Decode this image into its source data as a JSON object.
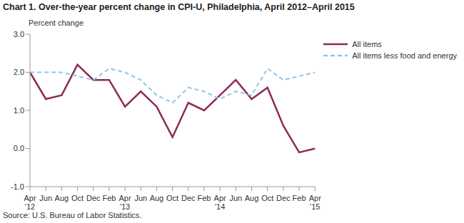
{
  "chart_data": {
    "type": "line",
    "title": "Chart 1. Over-the-year percent change in CPI-U, Philadelphia, April 2012–April 2015",
    "y_label": "Percent change",
    "source": "Source: U.S. Bureau of Labor Statistics.",
    "categories": [
      "Apr '12",
      "Jun",
      "Aug",
      "Oct",
      "Dec",
      "Feb",
      "Apr '13",
      "Jun",
      "Aug",
      "Oct",
      "Dec",
      "Feb",
      "Apr '14",
      "Jun",
      "Aug",
      "Oct",
      "Dec",
      "Feb",
      "Apr '15"
    ],
    "series": [
      {
        "name": "All items",
        "color": "#8e2a5b",
        "line_style": "solid",
        "values": [
          2.0,
          1.3,
          1.4,
          2.2,
          1.8,
          1.8,
          1.1,
          1.5,
          1.1,
          0.3,
          1.2,
          1.0,
          1.4,
          1.8,
          1.3,
          1.6,
          0.6,
          -0.1,
          0.0
        ]
      },
      {
        "name": "All items less food and energy",
        "color": "#92c5ec",
        "line_style": "dashed",
        "values": [
          2.0,
          2.0,
          2.0,
          1.9,
          1.8,
          2.1,
          2.0,
          1.8,
          1.4,
          1.2,
          1.6,
          1.5,
          1.3,
          1.5,
          1.4,
          2.1,
          1.8,
          1.9,
          2.0
        ]
      }
    ],
    "ylim": [
      -1,
      3
    ],
    "yticks": [
      {
        "value": -1,
        "label": "-1.0"
      },
      {
        "value": 0,
        "label": "0.0"
      },
      {
        "value": 1,
        "label": "1.0"
      },
      {
        "value": 2,
        "label": "2.0"
      },
      {
        "value": 3,
        "label": "3.0"
      }
    ],
    "grid": false,
    "legend": "upper right"
  }
}
